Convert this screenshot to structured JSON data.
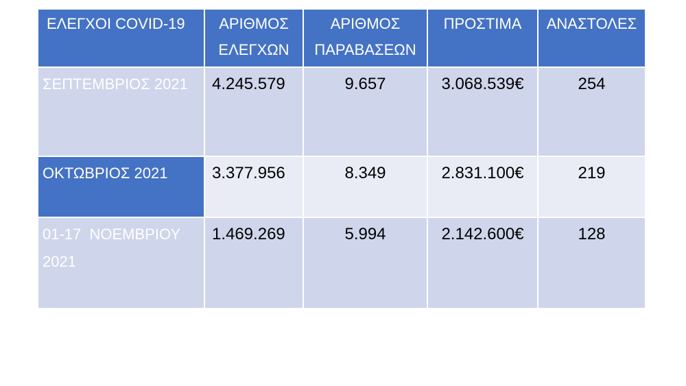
{
  "table": {
    "header": [
      "ΕΛΕΓΧΟΙ COVID-19",
      "ΑΡΙΘΜΟΣ ΕΛΕΓΧΩΝ",
      "ΑΡΙΘΜΟΣ ΠΑΡΑΒΑΣΕΩΝ",
      "ΠΡΟΣΤΙΜΑ",
      "ΑΝΑΣΤΟΛΕΣ"
    ],
    "rows": [
      [
        "ΣΕΠΤΕΜΒΡΙΟΣ 2021",
        "4.245.579",
        "9.657",
        "3.068.539€",
        "254"
      ],
      [
        "ΟΚΤΩΒΡΙΟΣ 2021",
        "3.377.956",
        "8.349",
        "2.831.100€",
        "219"
      ],
      [
        "01-17  ΝΟΕΜΒΡΙΟΥ 2021",
        "1.469.269",
        "5.994",
        "2.142.600€",
        "128"
      ]
    ]
  }
}
